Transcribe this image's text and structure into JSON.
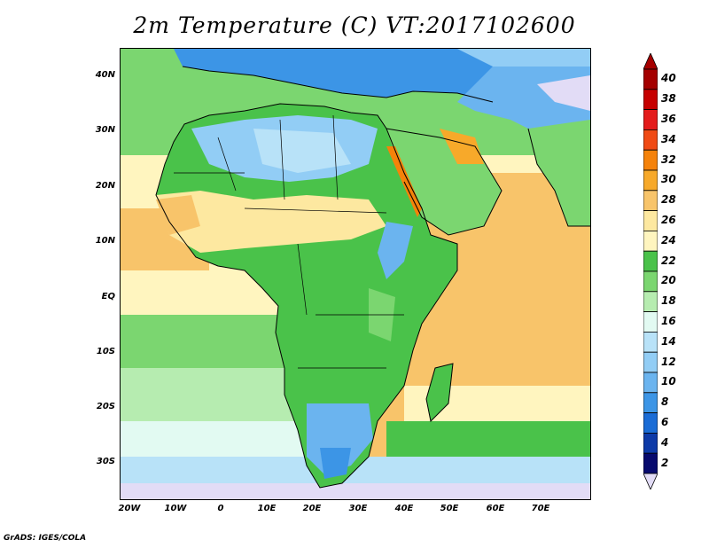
{
  "title": "2m Temperature (C) VT:2017102600",
  "credit": "GrADS: IGES/COLA",
  "lat_labels": [
    "40N",
    "30N",
    "20N",
    "10N",
    "EQ",
    "10S",
    "20S",
    "30S"
  ],
  "lon_labels": [
    "20W",
    "10W",
    "0",
    "10E",
    "20E",
    "30E",
    "40E",
    "50E",
    "60E",
    "70E"
  ],
  "colorbar": {
    "labels": [
      "40",
      "38",
      "36",
      "34",
      "32",
      "30",
      "28",
      "26",
      "24",
      "22",
      "20",
      "18",
      "16",
      "14",
      "12",
      "10",
      "8",
      "6",
      "4",
      "2"
    ],
    "colors": [
      "#a50000",
      "#c60000",
      "#e41b1b",
      "#f04a14",
      "#f5820a",
      "#f7a92a",
      "#f8c46a",
      "#fde8a0",
      "#fff5bf",
      "#4ac24a",
      "#7bd670",
      "#b6ecb0",
      "#e2faf2",
      "#b8e2f8",
      "#92cdf5",
      "#6bb4ef",
      "#3c95e6",
      "#1a6cd6",
      "#0d3aa8",
      "#070a6e"
    ],
    "below_color": "#e2dcf6"
  }
}
